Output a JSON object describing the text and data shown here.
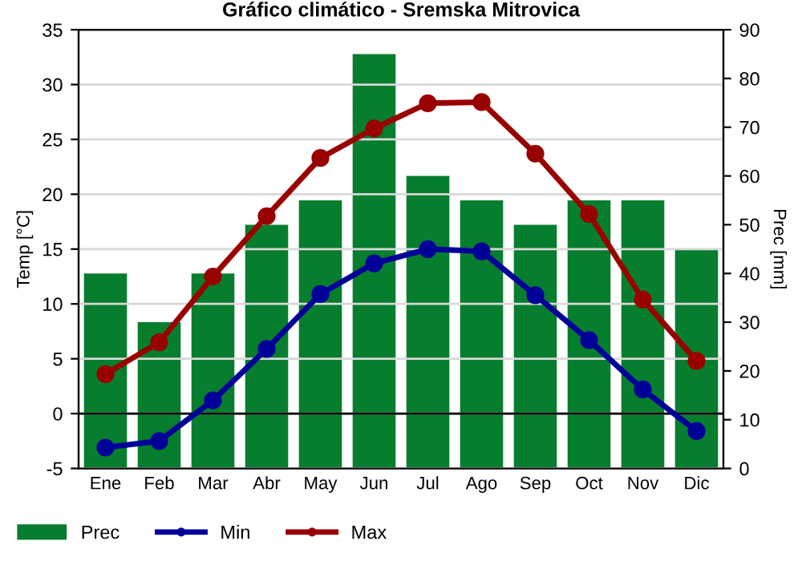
{
  "chart_data": {
    "type": "line",
    "title": "Gráfico climático - Sremska Mitrovica",
    "ylabel": "Temp [°C]",
    "y2label": "Prec [mm]",
    "categories": [
      "Ene",
      "Feb",
      "Mar",
      "Abr",
      "May",
      "Jun",
      "Jul",
      "Ago",
      "Sep",
      "Oct",
      "Nov",
      "Dic"
    ],
    "series": [
      {
        "name": "Prec",
        "type": "bar",
        "axis": "y2",
        "color": "#077d2e",
        "values": [
          40,
          30,
          40,
          50,
          55,
          85,
          60,
          55,
          50,
          55,
          55,
          45
        ]
      },
      {
        "name": "Min",
        "axis": "y",
        "color": "#000099",
        "values": [
          -3.1,
          -2.5,
          1.2,
          5.9,
          10.9,
          13.7,
          15.0,
          14.8,
          10.8,
          6.7,
          2.2,
          -1.6
        ]
      },
      {
        "name": "Max",
        "axis": "y",
        "color": "#990000",
        "values": [
          3.6,
          6.5,
          12.5,
          18.0,
          23.3,
          26.0,
          28.3,
          28.4,
          23.7,
          18.2,
          10.4,
          4.8
        ]
      }
    ],
    "ylim": [
      -5,
      35
    ],
    "yticks": [
      -5,
      0,
      5,
      10,
      15,
      20,
      25,
      30,
      35
    ],
    "y2lim": [
      0,
      90
    ],
    "y2ticks": [
      0,
      10,
      20,
      30,
      40,
      50,
      60,
      70,
      80,
      90
    ],
    "ref_lines": [
      {
        "axis": "y",
        "value": 0,
        "color": "#000000"
      }
    ],
    "grid": true,
    "legend": "bottom",
    "marker": "circle",
    "line_style": "solid"
  }
}
